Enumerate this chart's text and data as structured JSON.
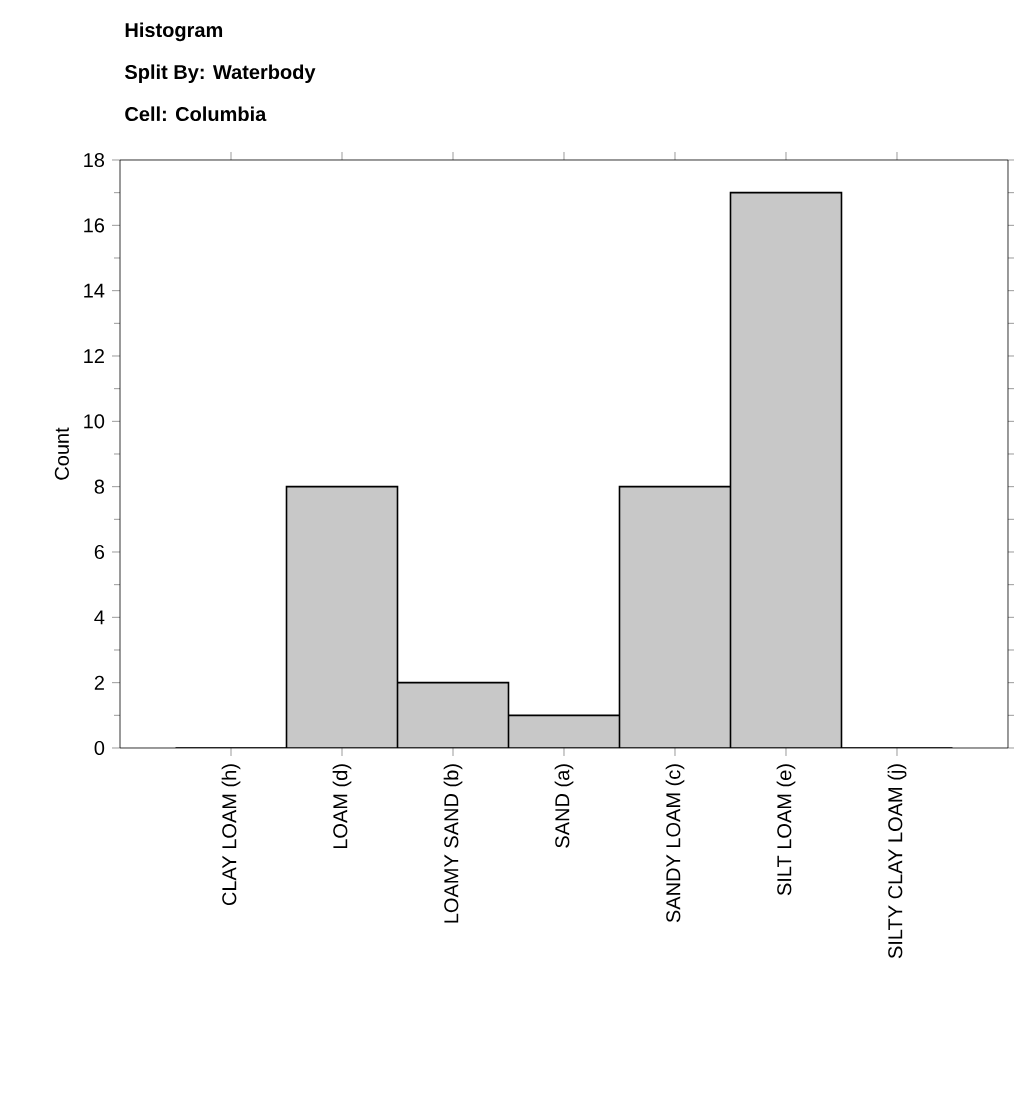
{
  "chart_data": {
    "type": "bar",
    "title": "Histogram",
    "subtitle": "Split By: Waterbody",
    "annotations": [
      "Cell: Columbia"
    ],
    "ylabel": "Count",
    "categories": [
      "CLAY LOAM (h)",
      "LOAM (d)",
      "LOAMY SAND (b)",
      "SAND (a)",
      "SANDY LOAM (c)",
      "SILT LOAM (e)",
      "SILTY CLAY LOAM (j)"
    ],
    "values": [
      0,
      8,
      2,
      1,
      8,
      17,
      0
    ],
    "color": "#c8c8c8",
    "ylim": [
      0,
      18
    ],
    "yticks": [
      0,
      2,
      4,
      6,
      8,
      10,
      12,
      14,
      16,
      18
    ],
    "grid": false
  }
}
